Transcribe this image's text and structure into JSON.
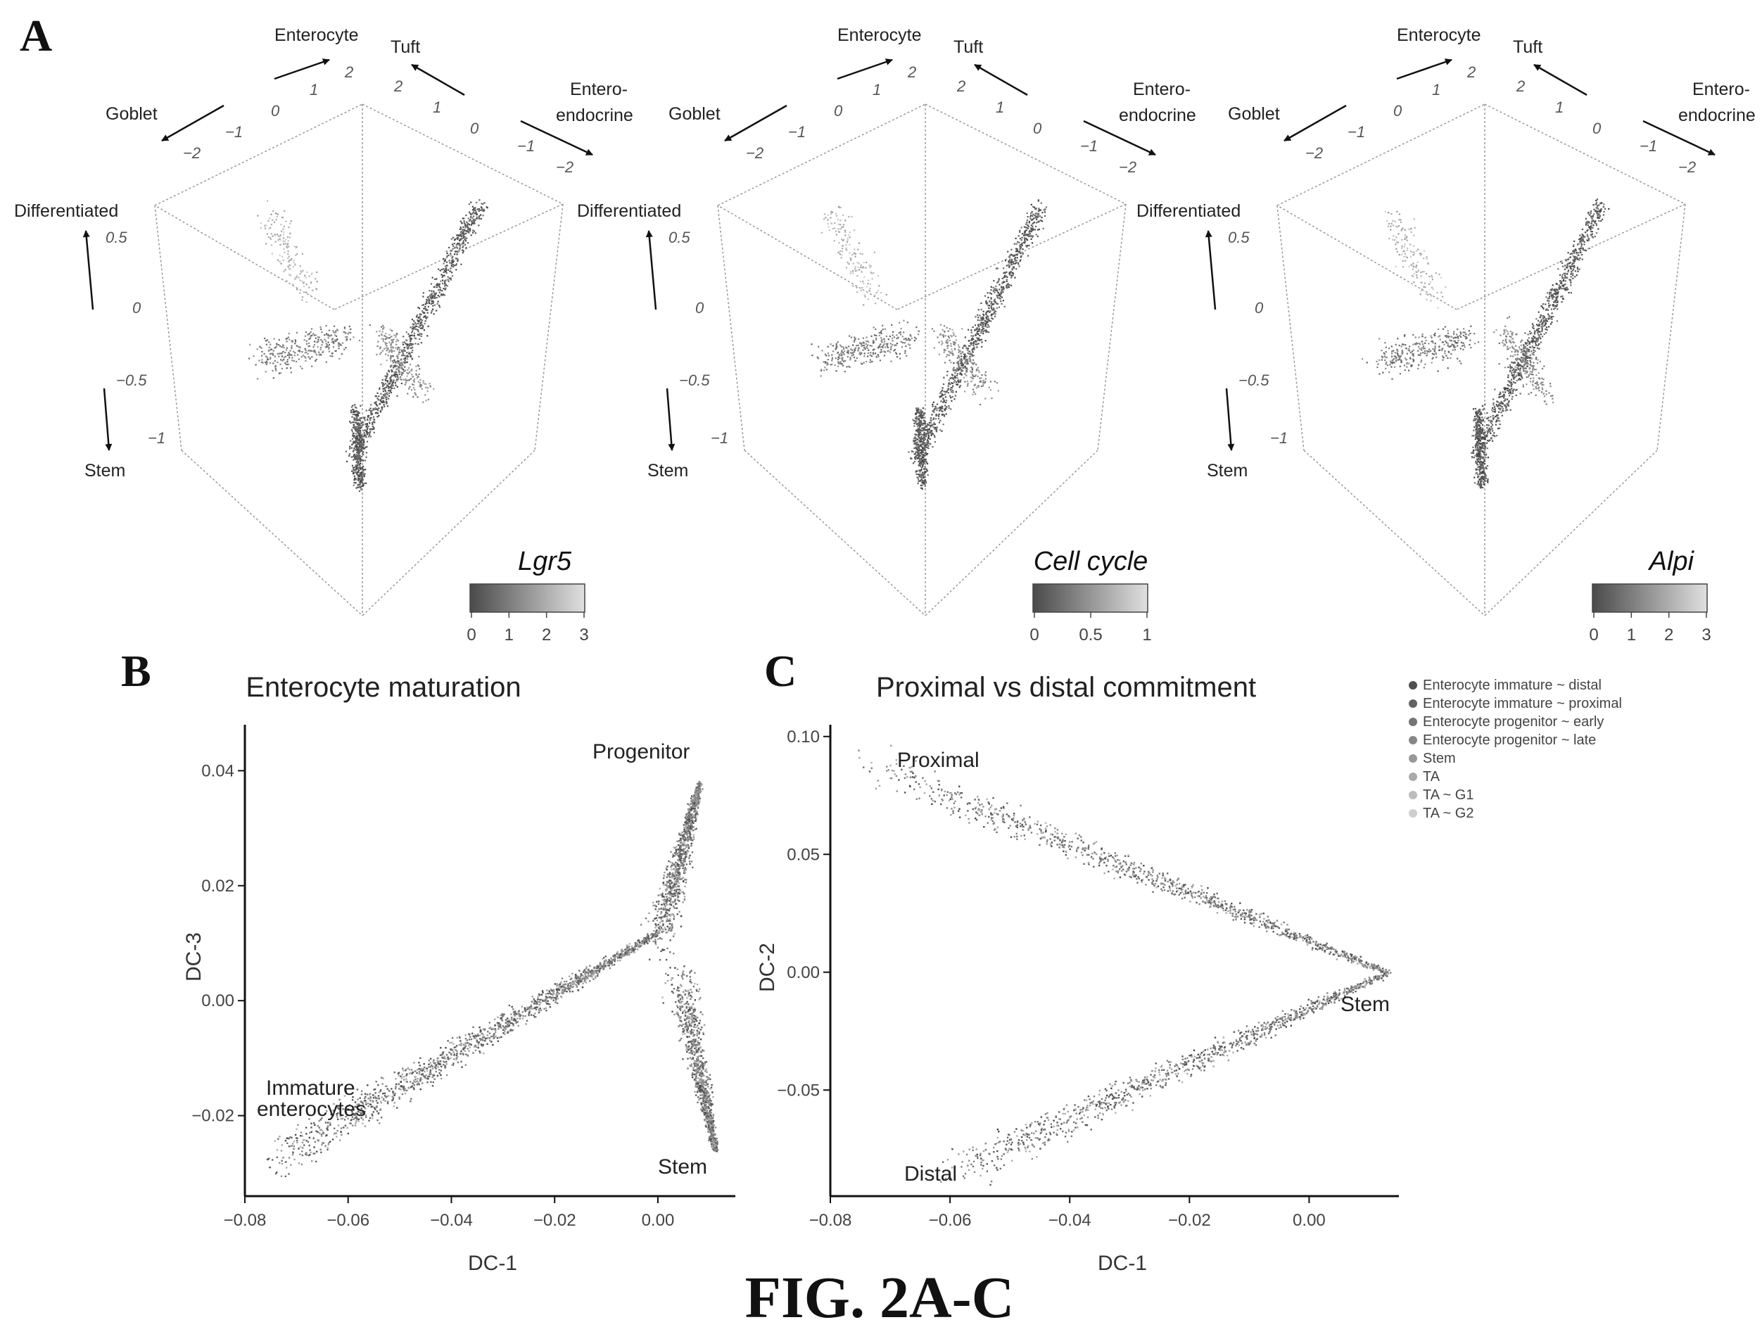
{
  "figure_caption": "FIG. 2A-C",
  "panels": {
    "a": "A",
    "b": "B",
    "c": "C"
  },
  "panel_a": {
    "directions": {
      "enterocyte": "Enterocyte",
      "tuft": "Tuft",
      "goblet": "Goblet",
      "entero_1": "Entero-",
      "entero_2": "endocrine",
      "differentiated": "Differentiated",
      "stem": "Stem"
    },
    "subpanels": [
      {
        "colorbar_title": "Lgr5",
        "colorbar_ticks": [
          "0",
          "1",
          "2",
          "3"
        ]
      },
      {
        "colorbar_title": "Cell cycle",
        "colorbar_ticks": [
          "0",
          "0.5",
          "1"
        ]
      },
      {
        "colorbar_title": "Alpi",
        "colorbar_ticks": [
          "0",
          "1",
          "2",
          "3"
        ]
      }
    ],
    "left_axis_ticks": [
      "2",
      "1",
      "0",
      "−1",
      "−2"
    ],
    "right_axis_ticks": [
      "2",
      "1",
      "0",
      "−1",
      "−2"
    ],
    "vertical_axis_ticks": [
      "0.5",
      "0",
      "−0.5",
      "−1"
    ]
  },
  "chart_data": [
    {
      "type": "scatter",
      "title": "Enterocyte maturation",
      "xlabel": "DC-1",
      "ylabel": "DC-3",
      "xlim": [
        -0.08,
        0.015
      ],
      "ylim": [
        -0.034,
        0.048
      ],
      "x_ticks": [
        "−0.08",
        "−0.06",
        "−0.04",
        "−0.02",
        "0.00"
      ],
      "y_ticks": [
        "−0.02",
        "0.00",
        "0.02",
        "0.04"
      ],
      "annotations": {
        "progenitor": "Progenitor",
        "immature_1": "Immature",
        "immature_2": "enterocytes",
        "stem": "Stem"
      },
      "point_clusters": [
        {
          "from": [
            -0.075,
            -0.028
          ],
          "to": [
            0.0,
            0.012
          ],
          "n": 1400
        },
        {
          "from": [
            0.0,
            0.01
          ],
          "to": [
            0.008,
            0.038
          ],
          "n": 900
        },
        {
          "from": [
            0.004,
            0.005
          ],
          "to": [
            0.011,
            -0.026
          ],
          "n": 900
        }
      ]
    },
    {
      "type": "scatter",
      "title": "Proximal vs distal commitment",
      "xlabel": "DC-1",
      "ylabel": "DC-2",
      "xlim": [
        -0.08,
        0.015
      ],
      "ylim": [
        -0.095,
        0.105
      ],
      "x_ticks": [
        "−0.08",
        "−0.06",
        "−0.04",
        "−0.02",
        "0.00"
      ],
      "y_ticks": [
        "0.10",
        "0.05",
        "0.00",
        "−0.05"
      ],
      "annotations": {
        "proximal": "Proximal",
        "stem": "Stem",
        "distal": "Distal"
      },
      "legend_position": "top-right",
      "series": [
        {
          "name": "Enterocyte immature ~ distal"
        },
        {
          "name": "Enterocyte immature ~ proximal"
        },
        {
          "name": "Enterocyte progenitor ~ early"
        },
        {
          "name": "Enterocyte progenitor ~ late"
        },
        {
          "name": "Stem"
        },
        {
          "name": "TA"
        },
        {
          "name": "TA ~ G1"
        },
        {
          "name": "TA ~ G2"
        }
      ],
      "point_clusters": [
        {
          "from": [
            -0.075,
            0.09
          ],
          "to": [
            0.013,
            0.0
          ],
          "n": 1000
        },
        {
          "from": [
            -0.06,
            -0.085
          ],
          "to": [
            0.013,
            0.0
          ],
          "n": 1000
        }
      ]
    }
  ]
}
